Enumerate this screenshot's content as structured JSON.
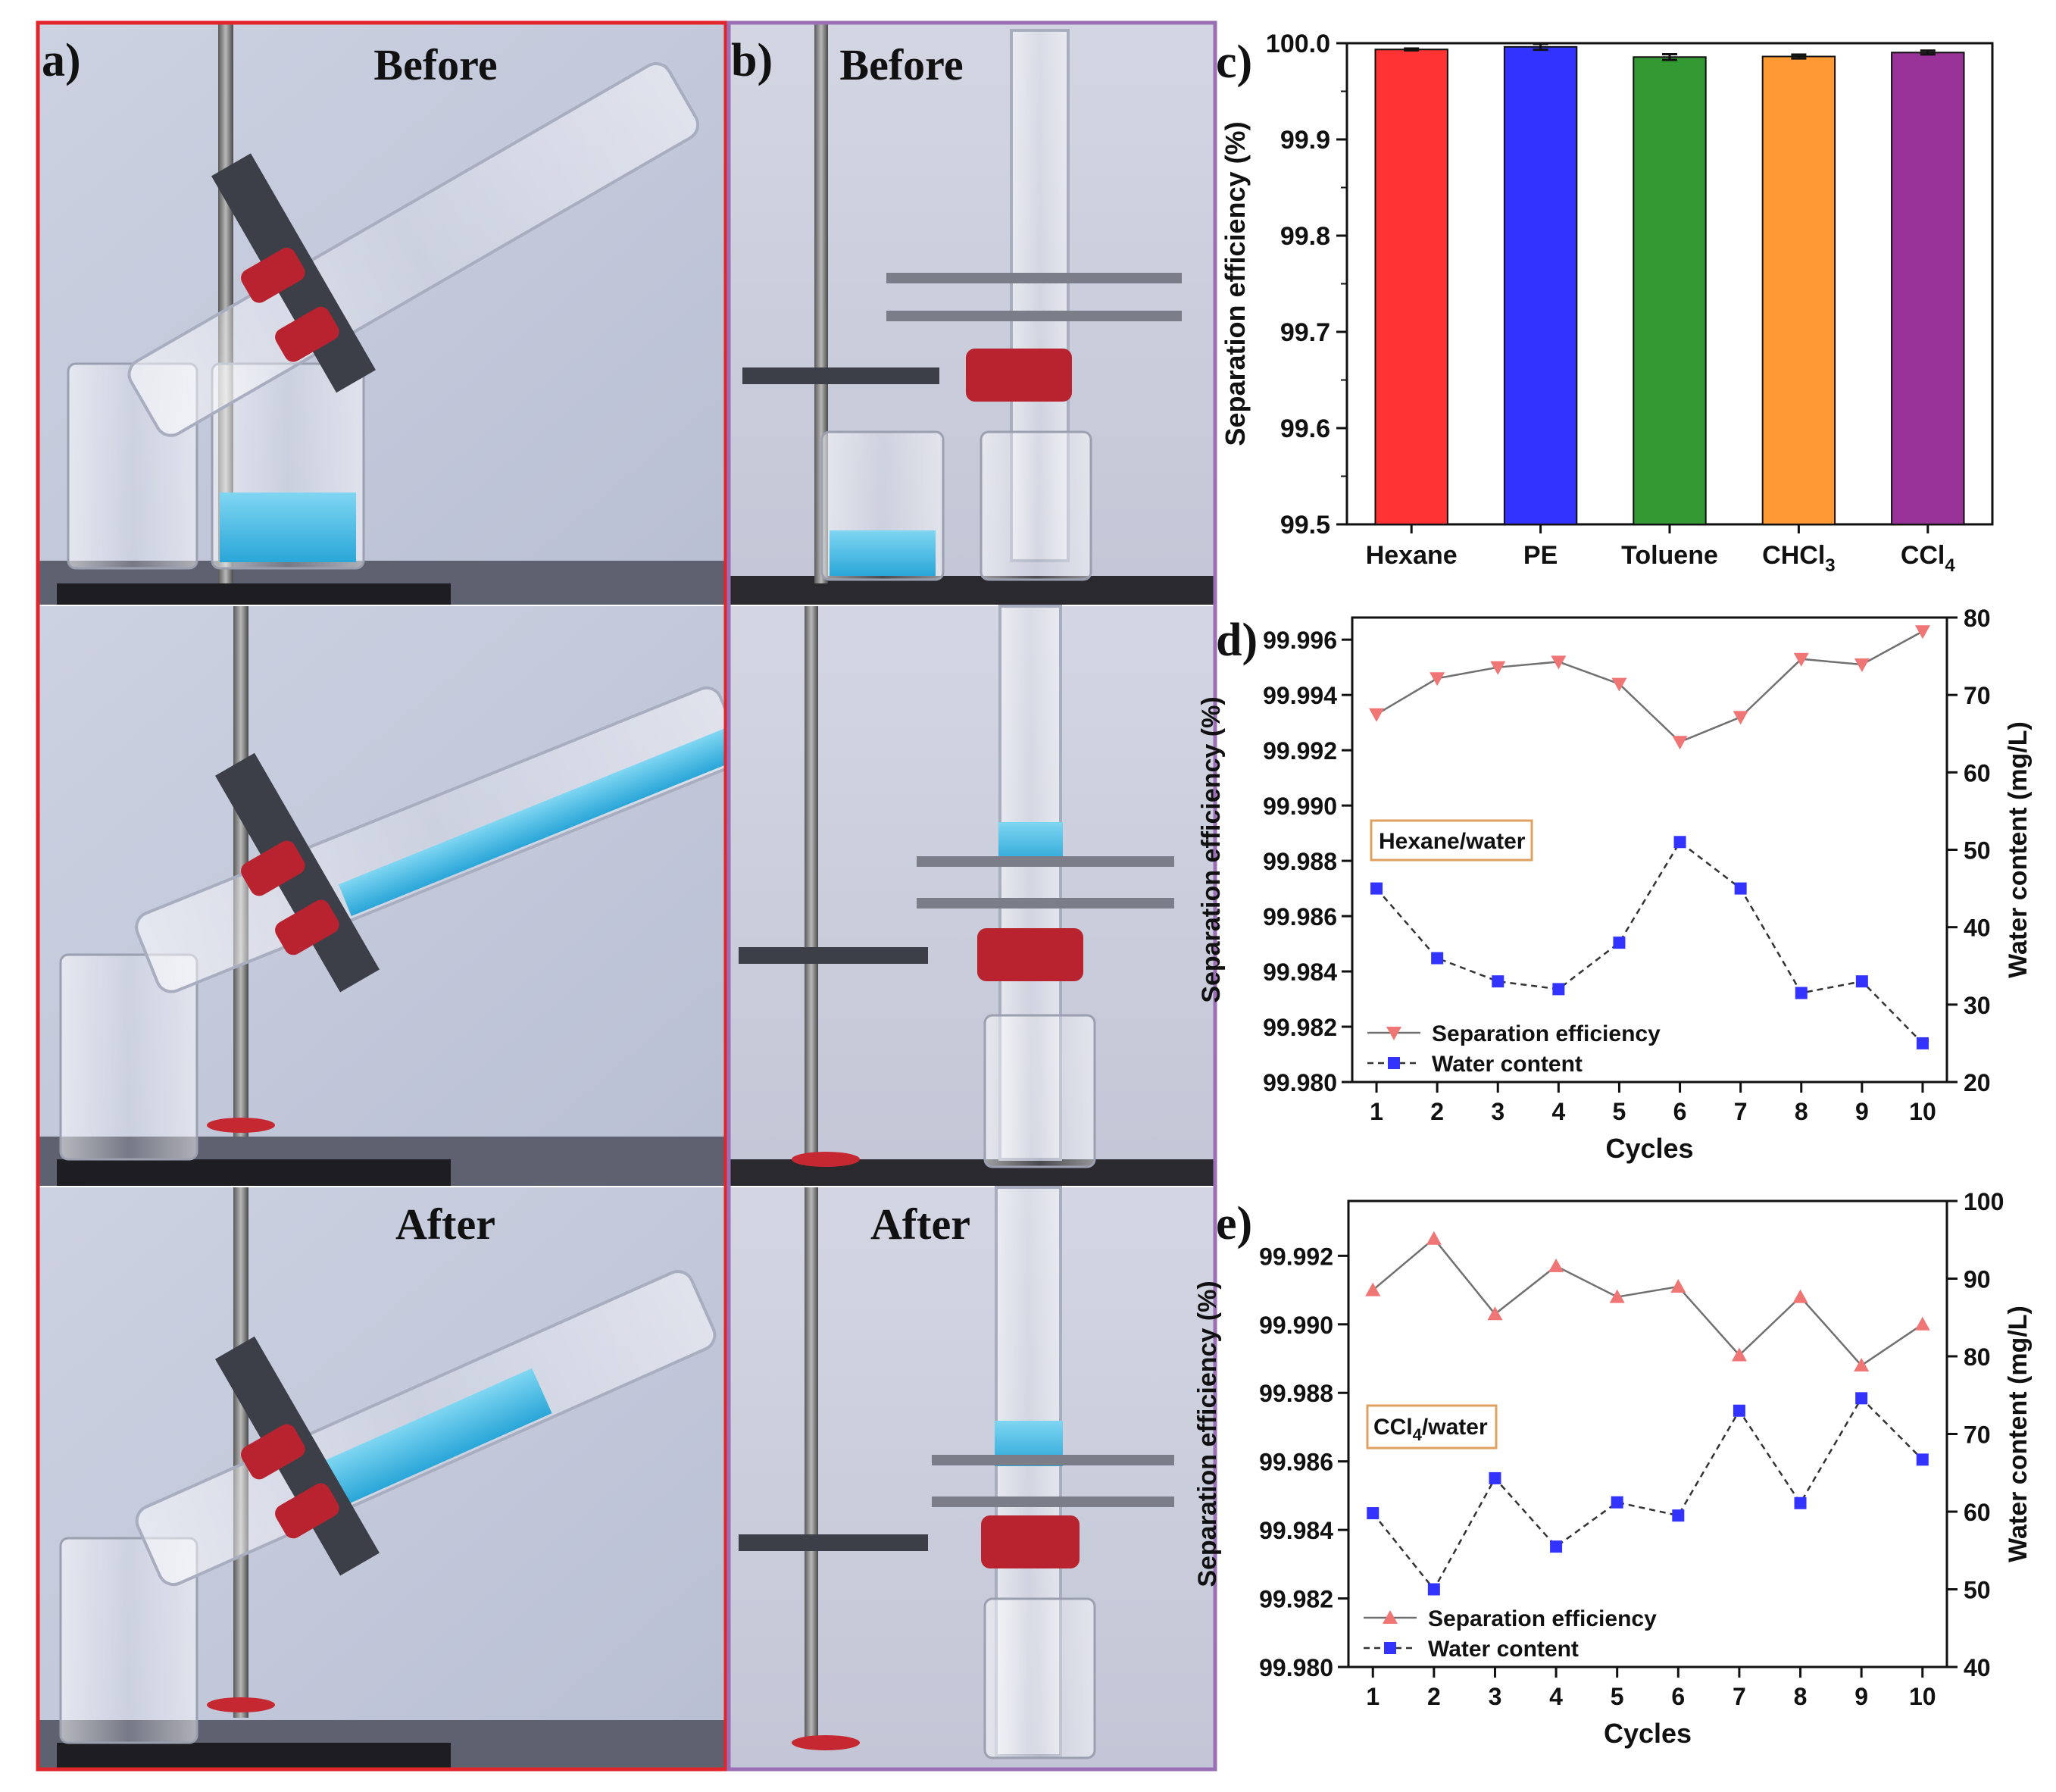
{
  "panels": {
    "a": {
      "label": "a)",
      "border_color": "#e0262b",
      "frames": [
        {
          "caption": "Before"
        },
        {
          "caption": ""
        },
        {
          "caption": "After"
        }
      ]
    },
    "b": {
      "label": "b)",
      "border_color": "#9b6fb5",
      "frames": [
        {
          "caption": "Before"
        },
        {
          "caption": ""
        },
        {
          "caption": "After"
        }
      ]
    }
  },
  "chart_data": [
    {
      "panel_label": "c)",
      "type": "bar",
      "categories": [
        "Hexane",
        "PE",
        "Toluene",
        "CHCl3",
        "CCl4"
      ],
      "category_main": [
        "Hexane",
        "PE",
        "Toluene",
        "CHCl",
        "CCl"
      ],
      "category_sub": [
        "",
        "",
        "",
        "3",
        "4"
      ],
      "values": [
        99.9935,
        99.9962,
        99.9856,
        99.9862,
        99.9903
      ],
      "errors": [
        0.001,
        0.003,
        0.003,
        0.002,
        0.002
      ],
      "colors": [
        "#ff3333",
        "#3333ff",
        "#339933",
        "#ff9933",
        "#993399"
      ],
      "ylabel": "Separation efficiency (%)",
      "ylim": [
        99.5,
        100.0
      ],
      "yticks": [
        99.5,
        99.6,
        99.7,
        99.8,
        99.9,
        100.0
      ],
      "ytick_labels": [
        "99.5",
        "99.6",
        "99.7",
        "99.8",
        "99.9",
        "100.0"
      ]
    },
    {
      "panel_label": "d)",
      "type": "line",
      "annotation": "Hexane/water",
      "x": [
        1,
        2,
        3,
        4,
        5,
        6,
        7,
        8,
        9,
        10
      ],
      "xticks": [
        1,
        2,
        3,
        4,
        5,
        6,
        7,
        8,
        9,
        10
      ],
      "xlabel": "Cycles",
      "xlim": [
        0.6,
        10.4
      ],
      "left_axis": {
        "label": "Separation efficiency (%)",
        "lim": [
          99.98,
          99.9968
        ],
        "ticks": [
          99.98,
          99.982,
          99.984,
          99.986,
          99.988,
          99.99,
          99.992,
          99.994,
          99.996
        ],
        "tick_labels": [
          "99.980",
          "99.982",
          "99.984",
          "99.986",
          "99.988",
          "99.990",
          "99.992",
          "99.994",
          "99.996"
        ]
      },
      "right_axis": {
        "label": "Water content (mg/L)",
        "lim": [
          20,
          80
        ],
        "ticks": [
          20,
          30,
          40,
          50,
          60,
          70,
          80
        ],
        "tick_labels": [
          "20",
          "30",
          "40",
          "50",
          "60",
          "70",
          "80"
        ]
      },
      "series": [
        {
          "name": "Separation efficiency",
          "axis": "left",
          "marker": "triangle-down",
          "line": "solid",
          "color": "#f07575",
          "line_color": "#707070",
          "values": [
            99.9933,
            99.9946,
            99.995,
            99.9952,
            99.9944,
            99.9923,
            99.9932,
            99.9953,
            99.9951,
            99.9963
          ]
        },
        {
          "name": "Water content",
          "axis": "right",
          "marker": "square",
          "line": "dashed",
          "color": "#3333ff",
          "line_color": "#333333",
          "values": [
            45,
            36,
            33,
            32,
            38,
            51,
            45,
            31.5,
            33,
            25
          ]
        }
      ],
      "legend_position": "bottom-left"
    },
    {
      "panel_label": "e)",
      "type": "line",
      "annotation_main": "CCl",
      "annotation_sub": "4",
      "annotation_rest": "/water",
      "x": [
        1,
        2,
        3,
        4,
        5,
        6,
        7,
        8,
        9,
        10
      ],
      "xticks": [
        1,
        2,
        3,
        4,
        5,
        6,
        7,
        8,
        9,
        10
      ],
      "xlabel": "Cycles",
      "xlim": [
        0.6,
        10.4
      ],
      "left_axis": {
        "label": "Separation efficiency (%)",
        "lim": [
          99.98,
          99.9936
        ],
        "ticks": [
          99.98,
          99.982,
          99.984,
          99.986,
          99.988,
          99.99,
          99.992
        ],
        "tick_labels": [
          "99.980",
          "99.982",
          "99.984",
          "99.986",
          "99.988",
          "99.990",
          "99.992"
        ]
      },
      "right_axis": {
        "label": "Water content (mg/L)",
        "lim": [
          40,
          100
        ],
        "ticks": [
          40,
          50,
          60,
          70,
          80,
          90,
          100
        ],
        "tick_labels": [
          "40",
          "50",
          "60",
          "70",
          "80",
          "90",
          "100"
        ]
      },
      "series": [
        {
          "name": "Separation efficiency",
          "axis": "left",
          "marker": "triangle-up",
          "line": "solid",
          "color": "#f07575",
          "line_color": "#707070",
          "values": [
            99.991,
            99.9925,
            99.9903,
            99.9917,
            99.9908,
            99.9911,
            99.9891,
            99.9908,
            99.9888,
            99.99
          ]
        },
        {
          "name": "Water content",
          "axis": "right",
          "marker": "square",
          "line": "dashed",
          "color": "#3333ff",
          "line_color": "#333333",
          "values": [
            59.8,
            50.0,
            64.3,
            55.5,
            61.2,
            59.5,
            73.0,
            61.1,
            74.6,
            66.7
          ]
        }
      ],
      "legend_position": "bottom-left"
    }
  ]
}
